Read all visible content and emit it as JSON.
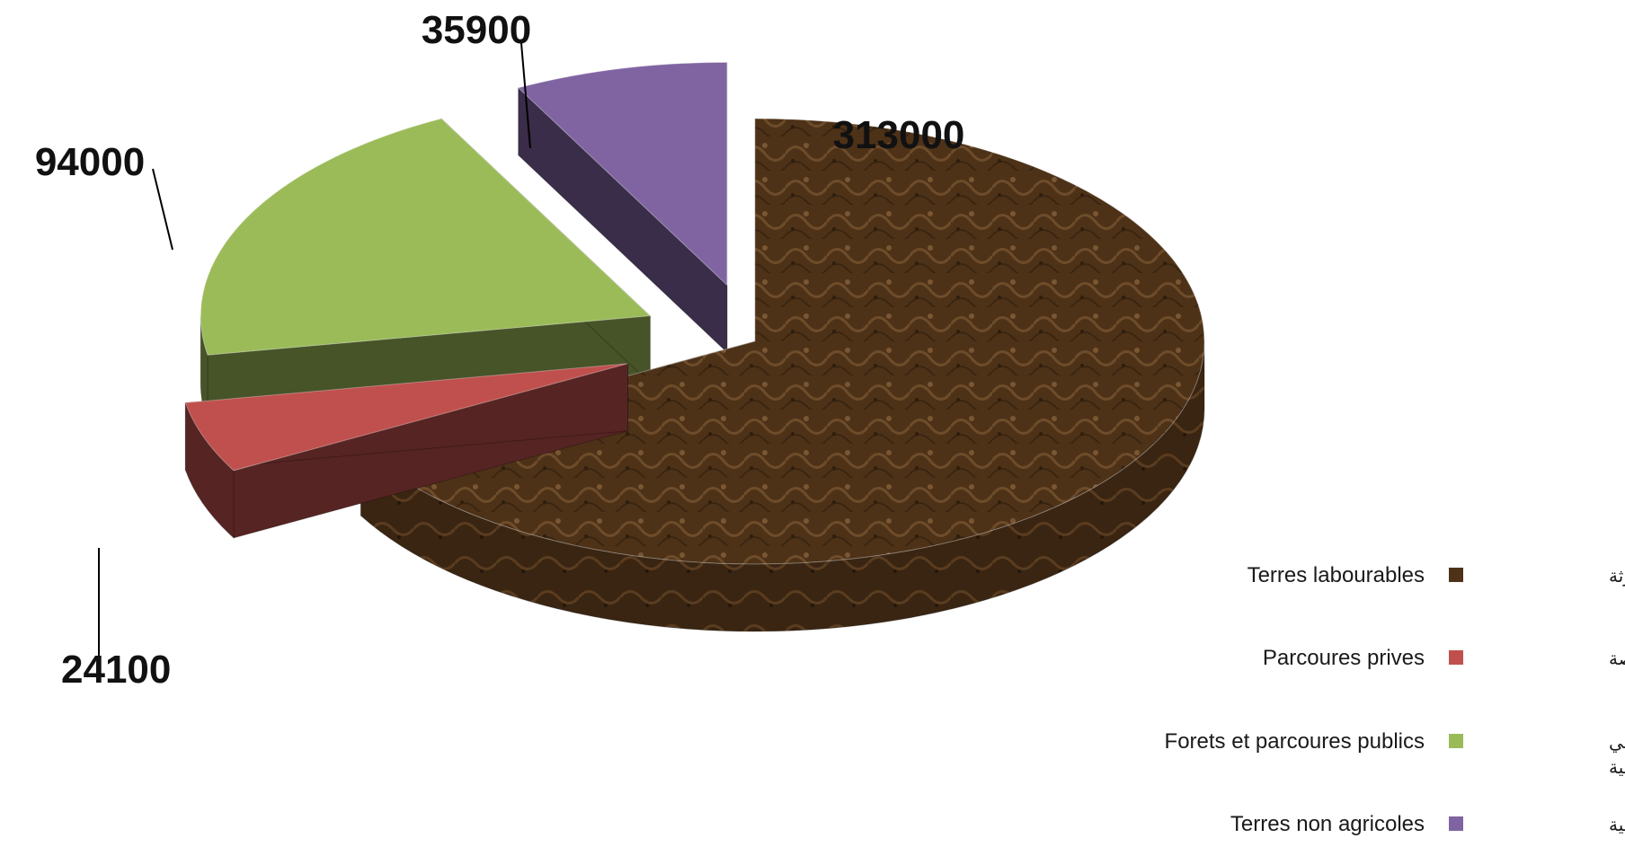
{
  "chart_data": {
    "type": "pie",
    "title": "",
    "slices": [
      {
        "label_fr": "Terres labourables",
        "label_ar": [
          "المحترثة"
        ],
        "value": 313000,
        "color": "#5a3a1e"
      },
      {
        "label_fr": "Parcoures prives",
        "label_ar": [
          "المراعي الخاصة"
        ],
        "value": 24100,
        "color": "#c0504d"
      },
      {
        "label_fr": "Forets et parcoures publics",
        "label_ar": [
          "الغابات والمراعي",
          "العمومية"
        ],
        "value": 94000,
        "color": "#9bbb59"
      },
      {
        "label_fr": "Terres non agricoles",
        "label_ar": [
          "ارضي غير فلاحية"
        ],
        "value": 35900,
        "color": "#8064a2"
      }
    ],
    "legend_position": "bottom-right",
    "exploded": true,
    "style": "3d"
  }
}
